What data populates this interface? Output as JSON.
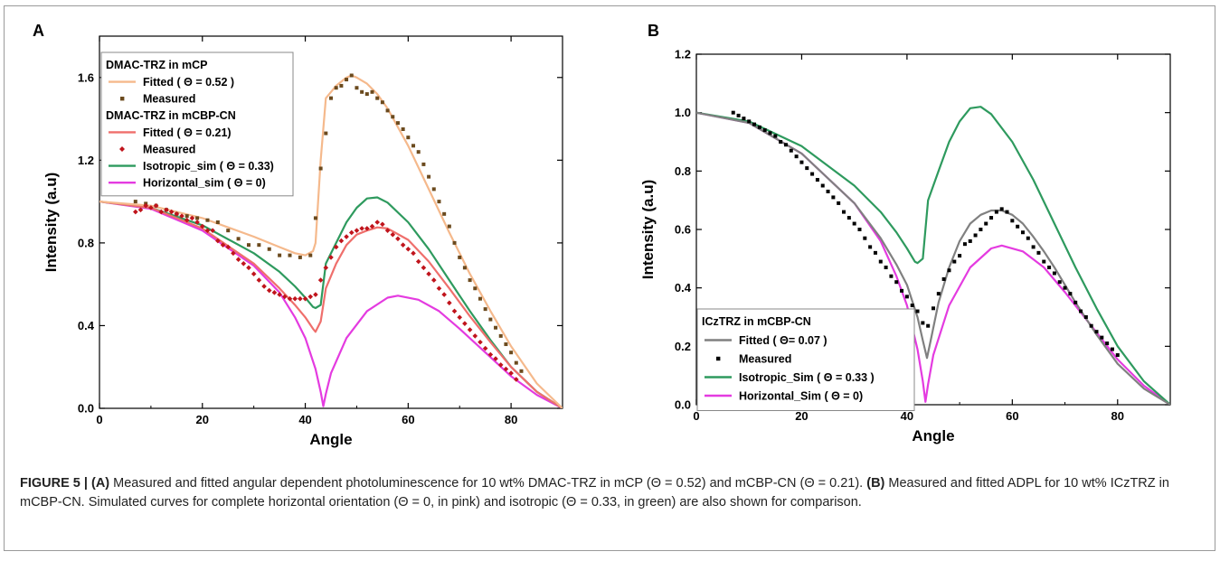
{
  "caption": {
    "label": "FIGURE 5 |",
    "part_a_label": "(A)",
    "part_a_text": " Measured and fitted angular dependent photoluminescence for 10 wt% DMAC-TRZ in mCP (Θ = 0.52) and mCBP-CN (Θ = 0.21). ",
    "part_b_label": "(B)",
    "part_b_text": " Measured and fitted ADPL for 10 wt% ICzTRZ in mCBP-CN. Simulated curves for complete horizontal orientation (Θ = 0, in pink) and isotropic (Θ = 0.33, in green) are also shown for comparison."
  },
  "chart_data": [
    {
      "panel": "A",
      "type": "line",
      "xlabel": "Angle",
      "ylabel": "Intensity (a.u)",
      "xlim": [
        0,
        90
      ],
      "ylim": [
        0,
        1.8
      ],
      "xticks": [
        0,
        20,
        40,
        60,
        80
      ],
      "yticks": [
        0.0,
        0.4,
        0.8,
        1.2,
        1.6
      ],
      "ytick_labels": [
        "0.0",
        "0.4",
        "0.8",
        "1.2",
        "1.6"
      ],
      "grid": false,
      "legend_position": "top-left",
      "legend": [
        {
          "kind": "header",
          "text": "DMAC-TRZ in mCP"
        },
        {
          "kind": "line",
          "text": "Fitted ( Θ = 0.52 )",
          "color": "#f5b98c"
        },
        {
          "kind": "marker",
          "text": "Measured",
          "color": "#6b4a1e",
          "marker": "square"
        },
        {
          "kind": "header",
          "text": "DMAC-TRZ in mCBP-CN"
        },
        {
          "kind": "line",
          "text": "Fitted ( Θ = 0.21)",
          "color": "#ef6f6c"
        },
        {
          "kind": "marker",
          "text": "Measured",
          "color": "#c0141c",
          "marker": "diamond"
        },
        {
          "kind": "line",
          "text": "Isotropic_sim ( Θ = 0.33)",
          "color": "#2e9a5e"
        },
        {
          "kind": "line",
          "text": "Horizontal_sim ( Θ = 0)",
          "color": "#e43be0"
        }
      ],
      "series": [
        {
          "name": "Horizontal_sim ( Θ = 0)",
          "style": "line",
          "color": "#e43be0",
          "x": [
            0,
            10,
            20,
            30,
            35,
            38,
            40,
            42,
            43,
            43.5,
            44,
            45,
            48,
            52,
            56,
            58,
            62,
            66,
            70,
            75,
            80,
            85,
            90
          ],
          "y": [
            1.0,
            0.965,
            0.86,
            0.69,
            0.56,
            0.44,
            0.34,
            0.19,
            0.08,
            0.01,
            0.07,
            0.17,
            0.34,
            0.47,
            0.535,
            0.545,
            0.525,
            0.47,
            0.385,
            0.27,
            0.155,
            0.065,
            0.0
          ]
        },
        {
          "name": "Isotropic_sim ( Θ = 0.33)",
          "style": "line",
          "color": "#2e9a5e",
          "x": [
            0,
            10,
            20,
            30,
            35,
            38,
            40,
            41.5,
            42,
            43,
            44,
            46,
            48,
            50,
            52,
            54,
            56,
            60,
            64,
            68,
            72,
            76,
            80,
            85,
            90
          ],
          "y": [
            1.0,
            0.97,
            0.885,
            0.75,
            0.66,
            0.59,
            0.535,
            0.49,
            0.485,
            0.5,
            0.7,
            0.8,
            0.9,
            0.97,
            1.015,
            1.02,
            0.995,
            0.9,
            0.77,
            0.62,
            0.47,
            0.33,
            0.2,
            0.08,
            0.0
          ]
        },
        {
          "name": "Fitted ( Θ = 0.21)",
          "style": "line",
          "color": "#ef6f6c",
          "x": [
            0,
            10,
            20,
            30,
            35,
            38,
            40,
            41.5,
            42,
            43,
            44,
            46,
            48,
            50,
            52,
            54,
            56,
            60,
            64,
            68,
            72,
            76,
            80,
            85,
            90
          ],
          "y": [
            1.0,
            0.97,
            0.87,
            0.7,
            0.58,
            0.5,
            0.44,
            0.385,
            0.37,
            0.42,
            0.58,
            0.7,
            0.79,
            0.84,
            0.86,
            0.875,
            0.87,
            0.815,
            0.71,
            0.58,
            0.445,
            0.32,
            0.2,
            0.08,
            0.0
          ]
        },
        {
          "name": "Fitted ( Θ = 0.52 )",
          "style": "line",
          "color": "#f5b98c",
          "x": [
            0,
            10,
            20,
            30,
            35,
            38,
            40,
            41.5,
            42,
            43,
            44,
            46,
            48,
            49,
            50,
            52,
            54,
            56,
            60,
            64,
            68,
            72,
            76,
            80,
            85,
            90
          ],
          "y": [
            1.0,
            0.98,
            0.92,
            0.83,
            0.78,
            0.75,
            0.74,
            0.76,
            0.8,
            1.2,
            1.5,
            1.56,
            1.6,
            1.61,
            1.6,
            1.57,
            1.52,
            1.45,
            1.27,
            1.06,
            0.85,
            0.65,
            0.47,
            0.3,
            0.12,
            0.0
          ]
        },
        {
          "name": "Measured",
          "style": "marker",
          "marker": "square",
          "color": "#6b4a1e",
          "x": [
            7,
            9,
            11,
            13,
            15,
            17,
            19,
            21,
            23,
            25,
            27,
            29,
            31,
            33,
            35,
            37,
            39,
            41,
            42,
            43,
            44,
            45,
            46,
            47,
            48,
            49,
            50,
            51,
            52,
            53,
            54,
            55,
            56,
            57,
            58,
            59,
            60,
            61,
            62,
            63,
            64,
            65,
            66,
            67,
            68,
            69,
            70,
            71,
            72,
            73,
            74,
            75,
            76,
            77,
            78,
            79,
            80,
            81,
            82
          ],
          "y": [
            1.0,
            0.99,
            0.98,
            0.96,
            0.94,
            0.93,
            0.92,
            0.91,
            0.9,
            0.86,
            0.82,
            0.79,
            0.79,
            0.77,
            0.74,
            0.74,
            0.73,
            0.74,
            0.92,
            1.16,
            1.33,
            1.5,
            1.55,
            1.56,
            1.59,
            1.61,
            1.55,
            1.53,
            1.52,
            1.53,
            1.5,
            1.48,
            1.44,
            1.41,
            1.38,
            1.35,
            1.31,
            1.27,
            1.24,
            1.18,
            1.12,
            1.06,
            1.0,
            0.94,
            0.88,
            0.8,
            0.73,
            0.68,
            0.62,
            0.58,
            0.53,
            0.48,
            0.43,
            0.39,
            0.35,
            0.31,
            0.27,
            0.22,
            0.18
          ]
        },
        {
          "name": "Measured",
          "style": "marker",
          "marker": "diamond",
          "color": "#c0141c",
          "x": [
            7,
            8,
            9,
            10,
            11,
            12,
            13,
            14,
            15,
            16,
            17,
            18,
            19,
            20,
            21,
            22,
            23,
            24,
            25,
            26,
            27,
            28,
            29,
            30,
            31,
            32,
            33,
            34,
            35,
            36,
            37,
            38,
            39,
            40,
            41,
            42,
            43,
            44,
            45,
            46,
            47,
            48,
            49,
            50,
            51,
            52,
            53,
            54,
            55,
            56,
            57,
            58,
            59,
            60,
            61,
            62,
            63,
            64,
            65,
            66,
            67,
            68,
            69,
            70,
            71,
            72,
            73,
            74,
            75,
            76,
            77,
            78,
            79,
            80,
            81
          ],
          "y": [
            0.95,
            0.96,
            0.98,
            0.97,
            0.98,
            0.95,
            0.96,
            0.95,
            0.94,
            0.93,
            0.91,
            0.92,
            0.9,
            0.88,
            0.86,
            0.86,
            0.81,
            0.79,
            0.78,
            0.75,
            0.72,
            0.7,
            0.68,
            0.65,
            0.62,
            0.59,
            0.57,
            0.56,
            0.55,
            0.54,
            0.53,
            0.53,
            0.53,
            0.53,
            0.54,
            0.55,
            0.62,
            0.68,
            0.73,
            0.78,
            0.81,
            0.83,
            0.85,
            0.86,
            0.87,
            0.87,
            0.88,
            0.9,
            0.89,
            0.86,
            0.84,
            0.82,
            0.79,
            0.77,
            0.75,
            0.71,
            0.68,
            0.65,
            0.62,
            0.58,
            0.55,
            0.51,
            0.47,
            0.44,
            0.41,
            0.38,
            0.35,
            0.32,
            0.29,
            0.26,
            0.24,
            0.21,
            0.19,
            0.17,
            0.14
          ]
        }
      ]
    },
    {
      "panel": "B",
      "type": "line",
      "xlabel": "Angle",
      "ylabel": "Intensity (a.u)",
      "xlim": [
        0,
        90
      ],
      "ylim": [
        0,
        1.2
      ],
      "xticks": [
        0,
        20,
        40,
        60,
        80
      ],
      "yticks": [
        0.0,
        0.2,
        0.4,
        0.6,
        0.8,
        1.0,
        1.2
      ],
      "ytick_labels": [
        "0.0",
        "0.2",
        "0.4",
        "0.6",
        "0.8",
        "1.0",
        "1.2"
      ],
      "grid": false,
      "legend_position": "bottom-left",
      "legend": [
        {
          "kind": "header",
          "text": "ICzTRZ in mCBP-CN"
        },
        {
          "kind": "line",
          "text": "Fitted ( Θ= 0.07 )",
          "color": "#808080"
        },
        {
          "kind": "marker",
          "text": "Measured",
          "color": "#000000",
          "marker": "square"
        },
        {
          "kind": "line",
          "text": "Isotropic_Sim ( Θ = 0.33 )",
          "color": "#2e9a5e"
        },
        {
          "kind": "line",
          "text": "Horizontal_Sim ( Θ = 0)",
          "color": "#e43be0"
        }
      ],
      "series": [
        {
          "name": "Horizontal_Sim ( Θ = 0)",
          "style": "line",
          "color": "#e43be0",
          "x": [
            0,
            10,
            20,
            30,
            35,
            38,
            40,
            42,
            43,
            43.5,
            44,
            45,
            48,
            52,
            56,
            58,
            62,
            66,
            70,
            75,
            80,
            85,
            90
          ],
          "y": [
            1.0,
            0.965,
            0.86,
            0.69,
            0.56,
            0.44,
            0.34,
            0.19,
            0.08,
            0.01,
            0.07,
            0.17,
            0.34,
            0.47,
            0.535,
            0.545,
            0.525,
            0.47,
            0.385,
            0.27,
            0.155,
            0.065,
            0.0
          ]
        },
        {
          "name": "Isotropic_Sim ( Θ = 0.33 )",
          "style": "line",
          "color": "#2e9a5e",
          "x": [
            0,
            10,
            20,
            30,
            35,
            38,
            40,
            41.5,
            42,
            43,
            44,
            46,
            48,
            50,
            52,
            54,
            56,
            60,
            64,
            68,
            72,
            76,
            80,
            85,
            90
          ],
          "y": [
            1.0,
            0.97,
            0.885,
            0.75,
            0.66,
            0.59,
            0.535,
            0.49,
            0.485,
            0.5,
            0.7,
            0.8,
            0.9,
            0.97,
            1.015,
            1.02,
            0.995,
            0.9,
            0.77,
            0.62,
            0.47,
            0.33,
            0.2,
            0.08,
            0.0
          ]
        },
        {
          "name": "Fitted ( Θ= 0.07 )",
          "style": "line",
          "color": "#808080",
          "x": [
            0,
            10,
            20,
            30,
            35,
            38,
            40,
            42,
            43,
            43.8,
            44.5,
            46,
            48,
            50,
            52,
            54,
            56,
            58,
            60,
            62,
            64,
            66,
            68,
            70,
            72,
            76,
            80,
            85,
            90
          ],
          "y": [
            1.0,
            0.965,
            0.86,
            0.69,
            0.57,
            0.48,
            0.41,
            0.3,
            0.22,
            0.16,
            0.22,
            0.35,
            0.47,
            0.56,
            0.62,
            0.65,
            0.665,
            0.665,
            0.65,
            0.62,
            0.575,
            0.525,
            0.47,
            0.41,
            0.35,
            0.24,
            0.14,
            0.055,
            0.0
          ]
        },
        {
          "name": "Measured",
          "style": "marker",
          "marker": "square",
          "color": "#000000",
          "x": [
            7,
            8,
            9,
            10,
            11,
            12,
            13,
            14,
            15,
            16,
            17,
            18,
            19,
            20,
            21,
            22,
            23,
            24,
            25,
            26,
            27,
            28,
            29,
            30,
            31,
            32,
            33,
            34,
            35,
            36,
            37,
            38,
            39,
            40,
            41,
            42,
            43,
            44,
            45,
            46,
            47,
            48,
            49,
            50,
            51,
            52,
            53,
            54,
            55,
            56,
            57,
            58,
            59,
            60,
            61,
            62,
            63,
            64,
            65,
            66,
            67,
            68,
            69,
            70,
            71,
            72,
            73,
            74,
            75,
            76,
            77,
            78,
            79,
            80
          ],
          "y": [
            1.0,
            0.99,
            0.98,
            0.97,
            0.96,
            0.95,
            0.94,
            0.93,
            0.92,
            0.9,
            0.89,
            0.87,
            0.85,
            0.83,
            0.81,
            0.79,
            0.77,
            0.75,
            0.73,
            0.71,
            0.69,
            0.66,
            0.64,
            0.62,
            0.6,
            0.57,
            0.54,
            0.52,
            0.49,
            0.47,
            0.44,
            0.42,
            0.39,
            0.37,
            0.34,
            0.32,
            0.28,
            0.27,
            0.33,
            0.38,
            0.43,
            0.46,
            0.49,
            0.51,
            0.55,
            0.56,
            0.58,
            0.6,
            0.62,
            0.64,
            0.66,
            0.67,
            0.66,
            0.63,
            0.61,
            0.59,
            0.57,
            0.54,
            0.52,
            0.49,
            0.47,
            0.45,
            0.42,
            0.4,
            0.38,
            0.35,
            0.32,
            0.3,
            0.27,
            0.25,
            0.23,
            0.21,
            0.19,
            0.17
          ]
        }
      ]
    }
  ]
}
